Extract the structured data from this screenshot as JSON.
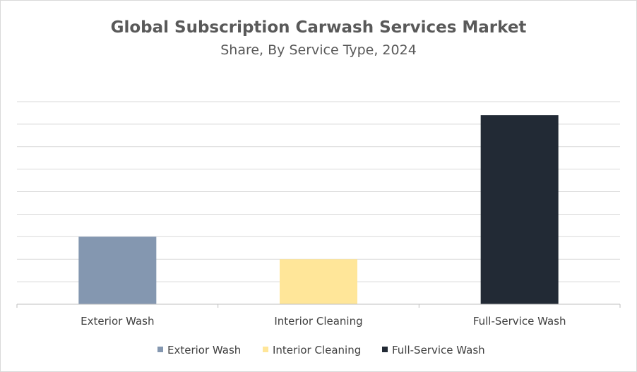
{
  "chart_data": {
    "type": "bar",
    "title": "Global Subscription Carwash Services Market",
    "subtitle": "Share, By Service Type, 2024",
    "categories": [
      "Exterior Wash",
      "Interior Cleaning",
      "Full-Service Wash"
    ],
    "values": [
      30,
      20,
      84
    ],
    "ylim": [
      0,
      90
    ],
    "grid": true,
    "legend_position": "bottom",
    "colors": [
      "#8497B0",
      "#FFE699",
      "#222A35"
    ],
    "legend": [
      "Exterior Wash",
      "Interior Cleaning",
      "Full-Service Wash"
    ]
  }
}
